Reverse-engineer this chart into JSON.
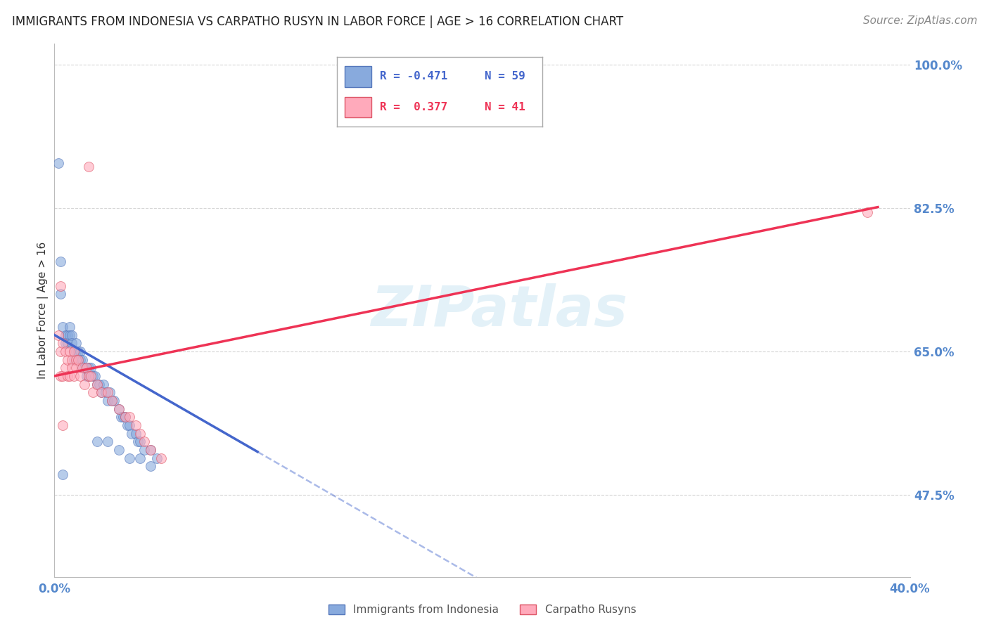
{
  "title": "IMMIGRANTS FROM INDONESIA VS CARPATHO RUSYN IN LABOR FORCE | AGE > 16 CORRELATION CHART",
  "source": "Source: ZipAtlas.com",
  "ylabel": "In Labor Force | Age > 16",
  "xlim": [
    0.0,
    0.4
  ],
  "ylim": [
    0.375,
    1.025
  ],
  "xtick_show": [
    "0.0%",
    "40.0%"
  ],
  "xtick_positions": [
    0.0,
    0.4
  ],
  "right_ytick_labels": [
    "100.0%",
    "82.5%",
    "65.0%",
    "47.5%"
  ],
  "right_ytick_positions": [
    1.0,
    0.825,
    0.65,
    0.475
  ],
  "grid_color": "#cccccc",
  "background_color": "#ffffff",
  "blue_color": "#88aadd",
  "blue_edge_color": "#5577bb",
  "pink_color": "#ffaabb",
  "pink_edge_color": "#dd5566",
  "blue_line_color": "#4466cc",
  "pink_line_color": "#ee3355",
  "axis_label_color": "#5588cc",
  "legend_r_blue": "R = -0.471",
  "legend_n_blue": "N = 59",
  "legend_r_pink": "R =  0.377",
  "legend_n_pink": "N = 41",
  "watermark": "ZIPatlas",
  "watermark_color": "#bbddee",
  "indonesia_label": "Immigrants from Indonesia",
  "rusyn_label": "Carpatho Rusyns",
  "blue_scatter_x": [
    0.003,
    0.004,
    0.005,
    0.005,
    0.006,
    0.006,
    0.007,
    0.007,
    0.008,
    0.008,
    0.009,
    0.009,
    0.01,
    0.01,
    0.011,
    0.011,
    0.012,
    0.012,
    0.013,
    0.013,
    0.014,
    0.015,
    0.015,
    0.016,
    0.016,
    0.017,
    0.018,
    0.019,
    0.02,
    0.021,
    0.022,
    0.023,
    0.024,
    0.025,
    0.026,
    0.027,
    0.028,
    0.03,
    0.031,
    0.032,
    0.033,
    0.034,
    0.035,
    0.036,
    0.038,
    0.039,
    0.04,
    0.042,
    0.045,
    0.048,
    0.002,
    0.003,
    0.004,
    0.02,
    0.025,
    0.03,
    0.035,
    0.04,
    0.045
  ],
  "blue_scatter_y": [
    0.72,
    0.68,
    0.67,
    0.66,
    0.67,
    0.66,
    0.68,
    0.67,
    0.67,
    0.66,
    0.65,
    0.64,
    0.66,
    0.65,
    0.65,
    0.64,
    0.65,
    0.64,
    0.64,
    0.63,
    0.63,
    0.63,
    0.62,
    0.63,
    0.62,
    0.63,
    0.62,
    0.62,
    0.61,
    0.61,
    0.6,
    0.61,
    0.6,
    0.59,
    0.6,
    0.59,
    0.59,
    0.58,
    0.57,
    0.57,
    0.57,
    0.56,
    0.56,
    0.55,
    0.55,
    0.54,
    0.54,
    0.53,
    0.53,
    0.52,
    0.88,
    0.76,
    0.5,
    0.54,
    0.54,
    0.53,
    0.52,
    0.52,
    0.51
  ],
  "pink_scatter_x": [
    0.002,
    0.003,
    0.003,
    0.004,
    0.004,
    0.005,
    0.005,
    0.006,
    0.006,
    0.007,
    0.007,
    0.008,
    0.008,
    0.009,
    0.009,
    0.01,
    0.01,
    0.011,
    0.012,
    0.013,
    0.014,
    0.015,
    0.016,
    0.017,
    0.018,
    0.02,
    0.022,
    0.025,
    0.027,
    0.03,
    0.033,
    0.035,
    0.038,
    0.04,
    0.042,
    0.045,
    0.05,
    0.003,
    0.004,
    0.016,
    0.38
  ],
  "pink_scatter_y": [
    0.67,
    0.65,
    0.62,
    0.66,
    0.62,
    0.65,
    0.63,
    0.64,
    0.62,
    0.65,
    0.62,
    0.64,
    0.63,
    0.65,
    0.62,
    0.64,
    0.63,
    0.64,
    0.62,
    0.63,
    0.61,
    0.63,
    0.62,
    0.62,
    0.6,
    0.61,
    0.6,
    0.6,
    0.59,
    0.58,
    0.57,
    0.57,
    0.56,
    0.55,
    0.54,
    0.53,
    0.52,
    0.73,
    0.56,
    0.875,
    0.82
  ],
  "blue_line_x0": 0.0,
  "blue_line_x1": 0.095,
  "blue_line_xdash0": 0.095,
  "blue_line_xdash1": 0.38,
  "blue_line_y_intercept": 0.67,
  "blue_line_slope": -1.5,
  "pink_line_x0": 0.0,
  "pink_line_x1": 0.385,
  "pink_line_y_intercept": 0.62,
  "pink_line_slope": 0.535,
  "title_fontsize": 12,
  "source_fontsize": 11,
  "legend_fontsize": 12,
  "axis_tick_fontsize": 12,
  "ylabel_fontsize": 11
}
